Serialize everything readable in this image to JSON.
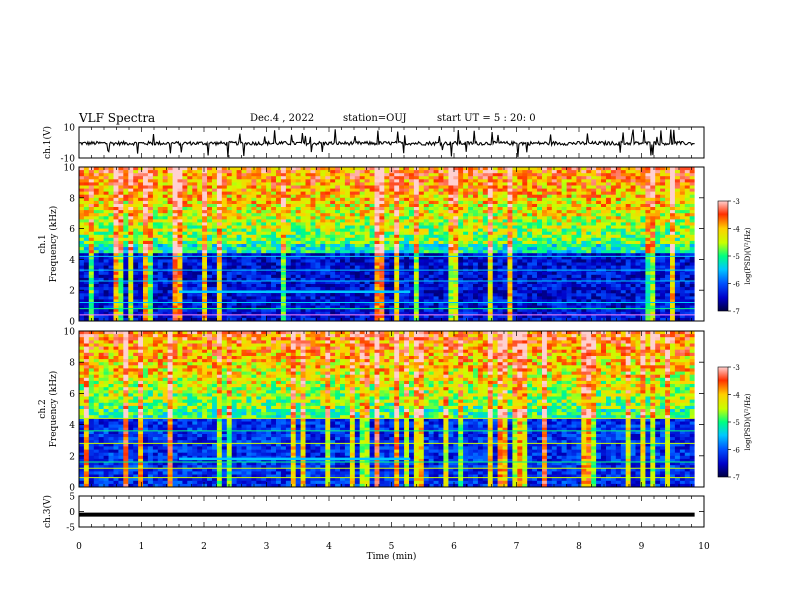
{
  "header": {
    "title": "VLF Spectra",
    "date": "Dec.4 , 2022",
    "station": "station=OUJ",
    "start": "start UT = 5 : 20: 0"
  },
  "chart_data": [
    {
      "type": "line",
      "panel": "ch1-waveform",
      "ylabel": "ch.1(V)",
      "ylim": [
        -10,
        10
      ],
      "y_ticks": [
        "10",
        "-10"
      ],
      "xlim": [
        0,
        10
      ],
      "description_values": {
        "baseline": -0.5,
        "noise_amplitude": 1.5
      }
    },
    {
      "type": "heatmap",
      "panel": "ch1-spectrogram",
      "ylabel": "ch.1",
      "ylabel2": "Frequency (kHz)",
      "ylim": [
        0,
        10
      ],
      "y_ticks": [
        "0",
        "2",
        "4",
        "6",
        "8",
        "10"
      ],
      "xlim": [
        0,
        10
      ],
      "colorbar": {
        "label": "log(PSD)(V²/Hz)",
        "range": [
          -7,
          -3
        ],
        "ticks": [
          "-3",
          "-4",
          "-5",
          "-6",
          "-7"
        ]
      }
    },
    {
      "type": "heatmap",
      "panel": "ch2-spectrogram",
      "ylabel": "ch.2",
      "ylabel2": "Frequency (kHz)",
      "ylim": [
        0,
        10
      ],
      "y_ticks": [
        "0",
        "2",
        "4",
        "6",
        "8",
        "10"
      ],
      "xlim": [
        0,
        10
      ],
      "colorbar": {
        "label": "log(PSD)(V²/Hz)",
        "range": [
          -7,
          -3
        ],
        "ticks": [
          "-3",
          "-4",
          "-5",
          "-6",
          "-7"
        ]
      }
    },
    {
      "type": "line",
      "panel": "ch3-waveform",
      "ylabel": "ch.3(V)",
      "ylim": [
        -5,
        5
      ],
      "y_ticks": [
        "5",
        "0",
        "-5"
      ],
      "xlim": [
        0,
        10
      ],
      "description_values": {
        "baseline": -1
      }
    }
  ],
  "x_axis": {
    "label": "Time (min)",
    "ticks": [
      "0",
      "1",
      "2",
      "3",
      "4",
      "5",
      "6",
      "7",
      "8",
      "9",
      "10"
    ]
  },
  "colors": {
    "cmap": [
      "#000040",
      "#0000c8",
      "#0050ff",
      "#00c8ff",
      "#00ff80",
      "#c8ff00",
      "#ffd000",
      "#ff3000",
      "#ffd0d0"
    ]
  }
}
